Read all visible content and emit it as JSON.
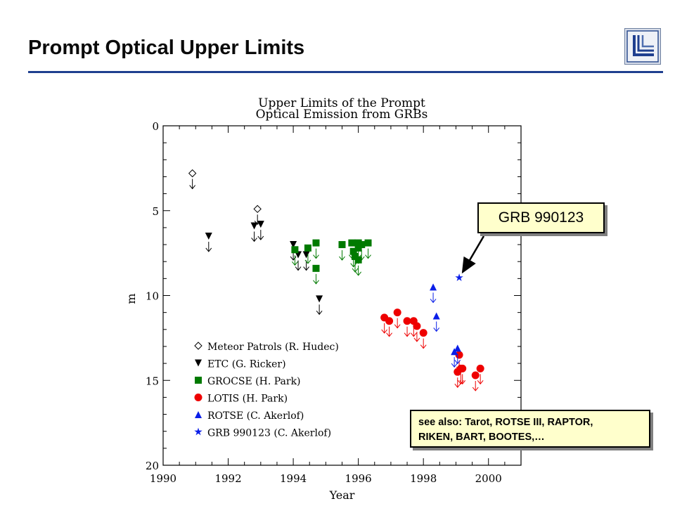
{
  "slide": {
    "title": "Prompt Optical Upper Limits",
    "logo_icon": "llnl-logo-icon",
    "accent_color": "#1f3f8f"
  },
  "callouts": {
    "grb": "GRB 990123",
    "see_also_line1": "see also: Tarot, ROTSE III, RAPTOR,",
    "see_also_line2": "RIKEN, BART, BOOTES,…"
  },
  "chart_data": {
    "type": "scatter",
    "title": "Upper Limits of the Prompt",
    "subtitle": "Optical Emission from GRBs",
    "xlabel": "Year",
    "ylabel": "m",
    "xlim": [
      1990,
      2001
    ],
    "ylim": [
      0,
      20
    ],
    "y_inverted": true,
    "grid": false,
    "legend_position": "bottom-left",
    "x_ticks": [
      "1990",
      "1992",
      "1994",
      "1996",
      "1998",
      "2000"
    ],
    "x_tick_values": [
      1990,
      1992,
      1994,
      1996,
      1998,
      2000
    ],
    "y_ticks": [
      "0",
      "5",
      "10",
      "15",
      "20"
    ],
    "y_tick_values": [
      0,
      5,
      10,
      15,
      20
    ],
    "series": [
      {
        "name": "Meteor Patrols (R. Hudec)",
        "marker": "diamond-open",
        "color": "#000000",
        "x": [
          1990.9,
          1992.9
        ],
        "y": [
          2.8,
          4.9
        ]
      },
      {
        "name": "ETC (G. Ricker)",
        "marker": "triangle-down",
        "color": "#000000",
        "x": [
          1991.4,
          1992.8,
          1993.0,
          1994.0,
          1994.15,
          1994.4,
          1994.8
        ],
        "y": [
          6.5,
          5.9,
          5.8,
          7.0,
          7.6,
          7.6,
          10.2
        ]
      },
      {
        "name": "GROCSE (H. Park)",
        "marker": "square",
        "color": "#007a00",
        "x": [
          1994.05,
          1994.45,
          1994.7,
          1994.7,
          1995.5,
          1995.8,
          1995.85,
          1995.9,
          1996.0,
          1996.0,
          1996.1,
          1996.0,
          1996.3
        ],
        "y": [
          7.3,
          7.2,
          6.9,
          8.4,
          7.0,
          6.9,
          7.4,
          7.7,
          6.9,
          7.2,
          7.0,
          7.9,
          6.9
        ]
      },
      {
        "name": "LOTIS (H. Park)",
        "marker": "circle",
        "color": "#ee0000",
        "x": [
          1996.8,
          1996.95,
          1997.2,
          1997.5,
          1997.7,
          1997.8,
          1998.0,
          1999.1,
          1999.05,
          1999.15,
          1999.2,
          1999.6,
          1999.75
        ],
        "y": [
          11.3,
          11.5,
          11.0,
          11.5,
          11.5,
          11.8,
          12.2,
          13.5,
          14.5,
          14.3,
          14.3,
          14.7,
          14.3
        ]
      },
      {
        "name": "ROTSE (C. Akerlof)",
        "marker": "triangle-up",
        "color": "#0a1ee8",
        "x": [
          1998.3,
          1998.4,
          1998.95,
          1999.05
        ],
        "y": [
          9.5,
          11.2,
          13.3,
          13.1
        ]
      },
      {
        "name": "GRB 990123 (C. Akerlof)",
        "marker": "star",
        "color": "#0a1ee8",
        "x": [
          1999.1
        ],
        "y": [
          8.95
        ]
      }
    ]
  }
}
